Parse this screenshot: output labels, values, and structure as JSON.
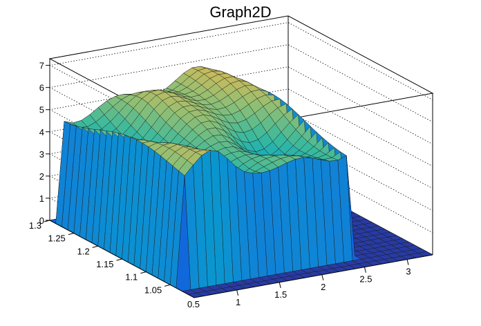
{
  "chart_data": {
    "type": "surface3d",
    "title": "Graph2D",
    "xlabel": "",
    "ylabel": "",
    "zlabel": "",
    "xlim": [
      0.5,
      3.3
    ],
    "ylim": [
      1.0,
      1.3
    ],
    "zlim": [
      0,
      7.3
    ],
    "x_ticks": [
      "1",
      "1.5",
      "2",
      "2.5",
      "3"
    ],
    "y_ticks": [
      "1.05",
      "1.1",
      "1.15",
      "1.2",
      "1.25",
      "1.3"
    ],
    "z_ticks": [
      "0",
      "1",
      "2",
      "3",
      "4",
      "5",
      "6",
      "7"
    ],
    "x_tick_values": [
      1,
      1.5,
      2,
      2.5,
      3
    ],
    "y_tick_values": [
      1.05,
      1.1,
      1.15,
      1.2,
      1.25,
      1.3
    ],
    "z_tick_values": [
      0,
      1,
      2,
      3,
      4,
      5,
      6,
      7
    ],
    "x_min_label": "0.5",
    "y_min_label": "",
    "grid": true,
    "colormap": "parula",
    "grid_x_step": 0.1,
    "grid_y_step": 0.0125,
    "description_of_shape": "",
    "profile_y": [
      1.0,
      1.05,
      1.1,
      1.15,
      1.2,
      1.25,
      1.3
    ],
    "plateau_z_min": 3.8,
    "plateau_z_max": 6.0
  },
  "colors": {
    "low": "#352a87",
    "mid": "#21b0ce",
    "high": "#f9fb0e"
  }
}
